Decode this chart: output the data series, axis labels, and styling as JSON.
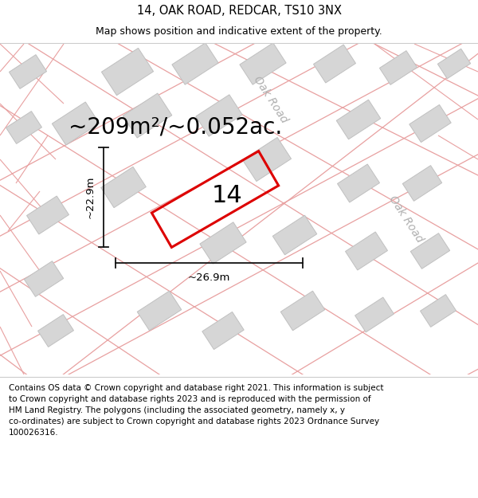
{
  "title": "14, OAK ROAD, REDCAR, TS10 3NX",
  "subtitle": "Map shows position and indicative extent of the property.",
  "footer": "Contains OS data © Crown copyright and database right 2021. This information is subject\nto Crown copyright and database rights 2023 and is reproduced with the permission of\nHM Land Registry. The polygons (including the associated geometry, namely x, y\nco-ordinates) are subject to Crown copyright and database rights 2023 Ordnance Survey\n100026316.",
  "area_text": "~209m²/~0.052ac.",
  "label_14": "14",
  "dim_height": "~22.9m",
  "dim_width": "~26.9m",
  "road_label_1": "Oak Road",
  "road_label_2": "Oak Road",
  "map_bg": "#eeecec",
  "building_fill": "#d6d6d6",
  "building_edge": "#c0c0c0",
  "road_line_color": "#e8a0a0",
  "red_poly_color": "#dd0000",
  "dim_line_color": "#111111",
  "title_fontsize": 10.5,
  "subtitle_fontsize": 9,
  "footer_fontsize": 7.5,
  "area_fontsize": 20,
  "label_fontsize": 22,
  "road_fontsize": 10,
  "dim_fontsize": 9.5
}
